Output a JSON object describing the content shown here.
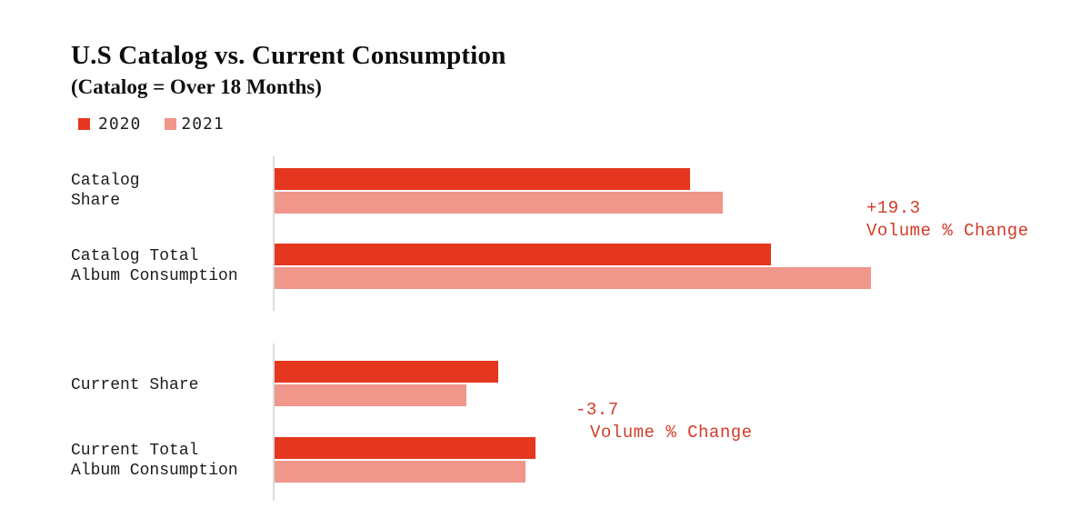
{
  "title": "U.S Catalog vs. Current Consumption",
  "subtitle": "(Catalog = Over 18 Months)",
  "legend": [
    {
      "label": "2020",
      "color": "#e5371f"
    },
    {
      "label": "2021",
      "color": "#f0968a"
    }
  ],
  "chart_data": {
    "type": "bar",
    "orientation": "horizontal",
    "title": "U.S Catalog vs. Current Consumption",
    "subtitle": "(Catalog = Over 18 Months)",
    "legend_position": "top-left",
    "grid": false,
    "axis_tick_labels_shown": false,
    "categories": [
      "Catalog Share",
      "Catalog Total Album Consumption",
      "Current Share",
      "Current Total Album Consumption"
    ],
    "category_label_lines": [
      [
        "Catalog",
        "Share"
      ],
      [
        "Catalog Total",
        "Album Consumption"
      ],
      [
        "Current Share"
      ],
      [
        "Current Total",
        "Album Consumption"
      ]
    ],
    "series": [
      {
        "name": "2020",
        "color": "#e5371f",
        "values": [
          69.7,
          83.2,
          37.5,
          43.8
        ]
      },
      {
        "name": "2021",
        "color": "#f0968a",
        "values": [
          75.2,
          100.0,
          32.2,
          42.1
        ]
      }
    ],
    "value_note": "No numeric axis is shown; values are relative bar lengths scaled so the longest bar (Catalog Total Album Consumption, 2021) = 100.",
    "annotations": [
      {
        "value": "+19.3",
        "label": "Volume % Change"
      },
      {
        "value": "-3.7",
        "label": "Volume % Change"
      }
    ]
  },
  "colors": {
    "bar_2020": "#e5371f",
    "bar_2021": "#f0968a",
    "annotation_red": "#d23b29",
    "axis_line": "#dcdcdc",
    "label_text": "#1c1c1c"
  }
}
